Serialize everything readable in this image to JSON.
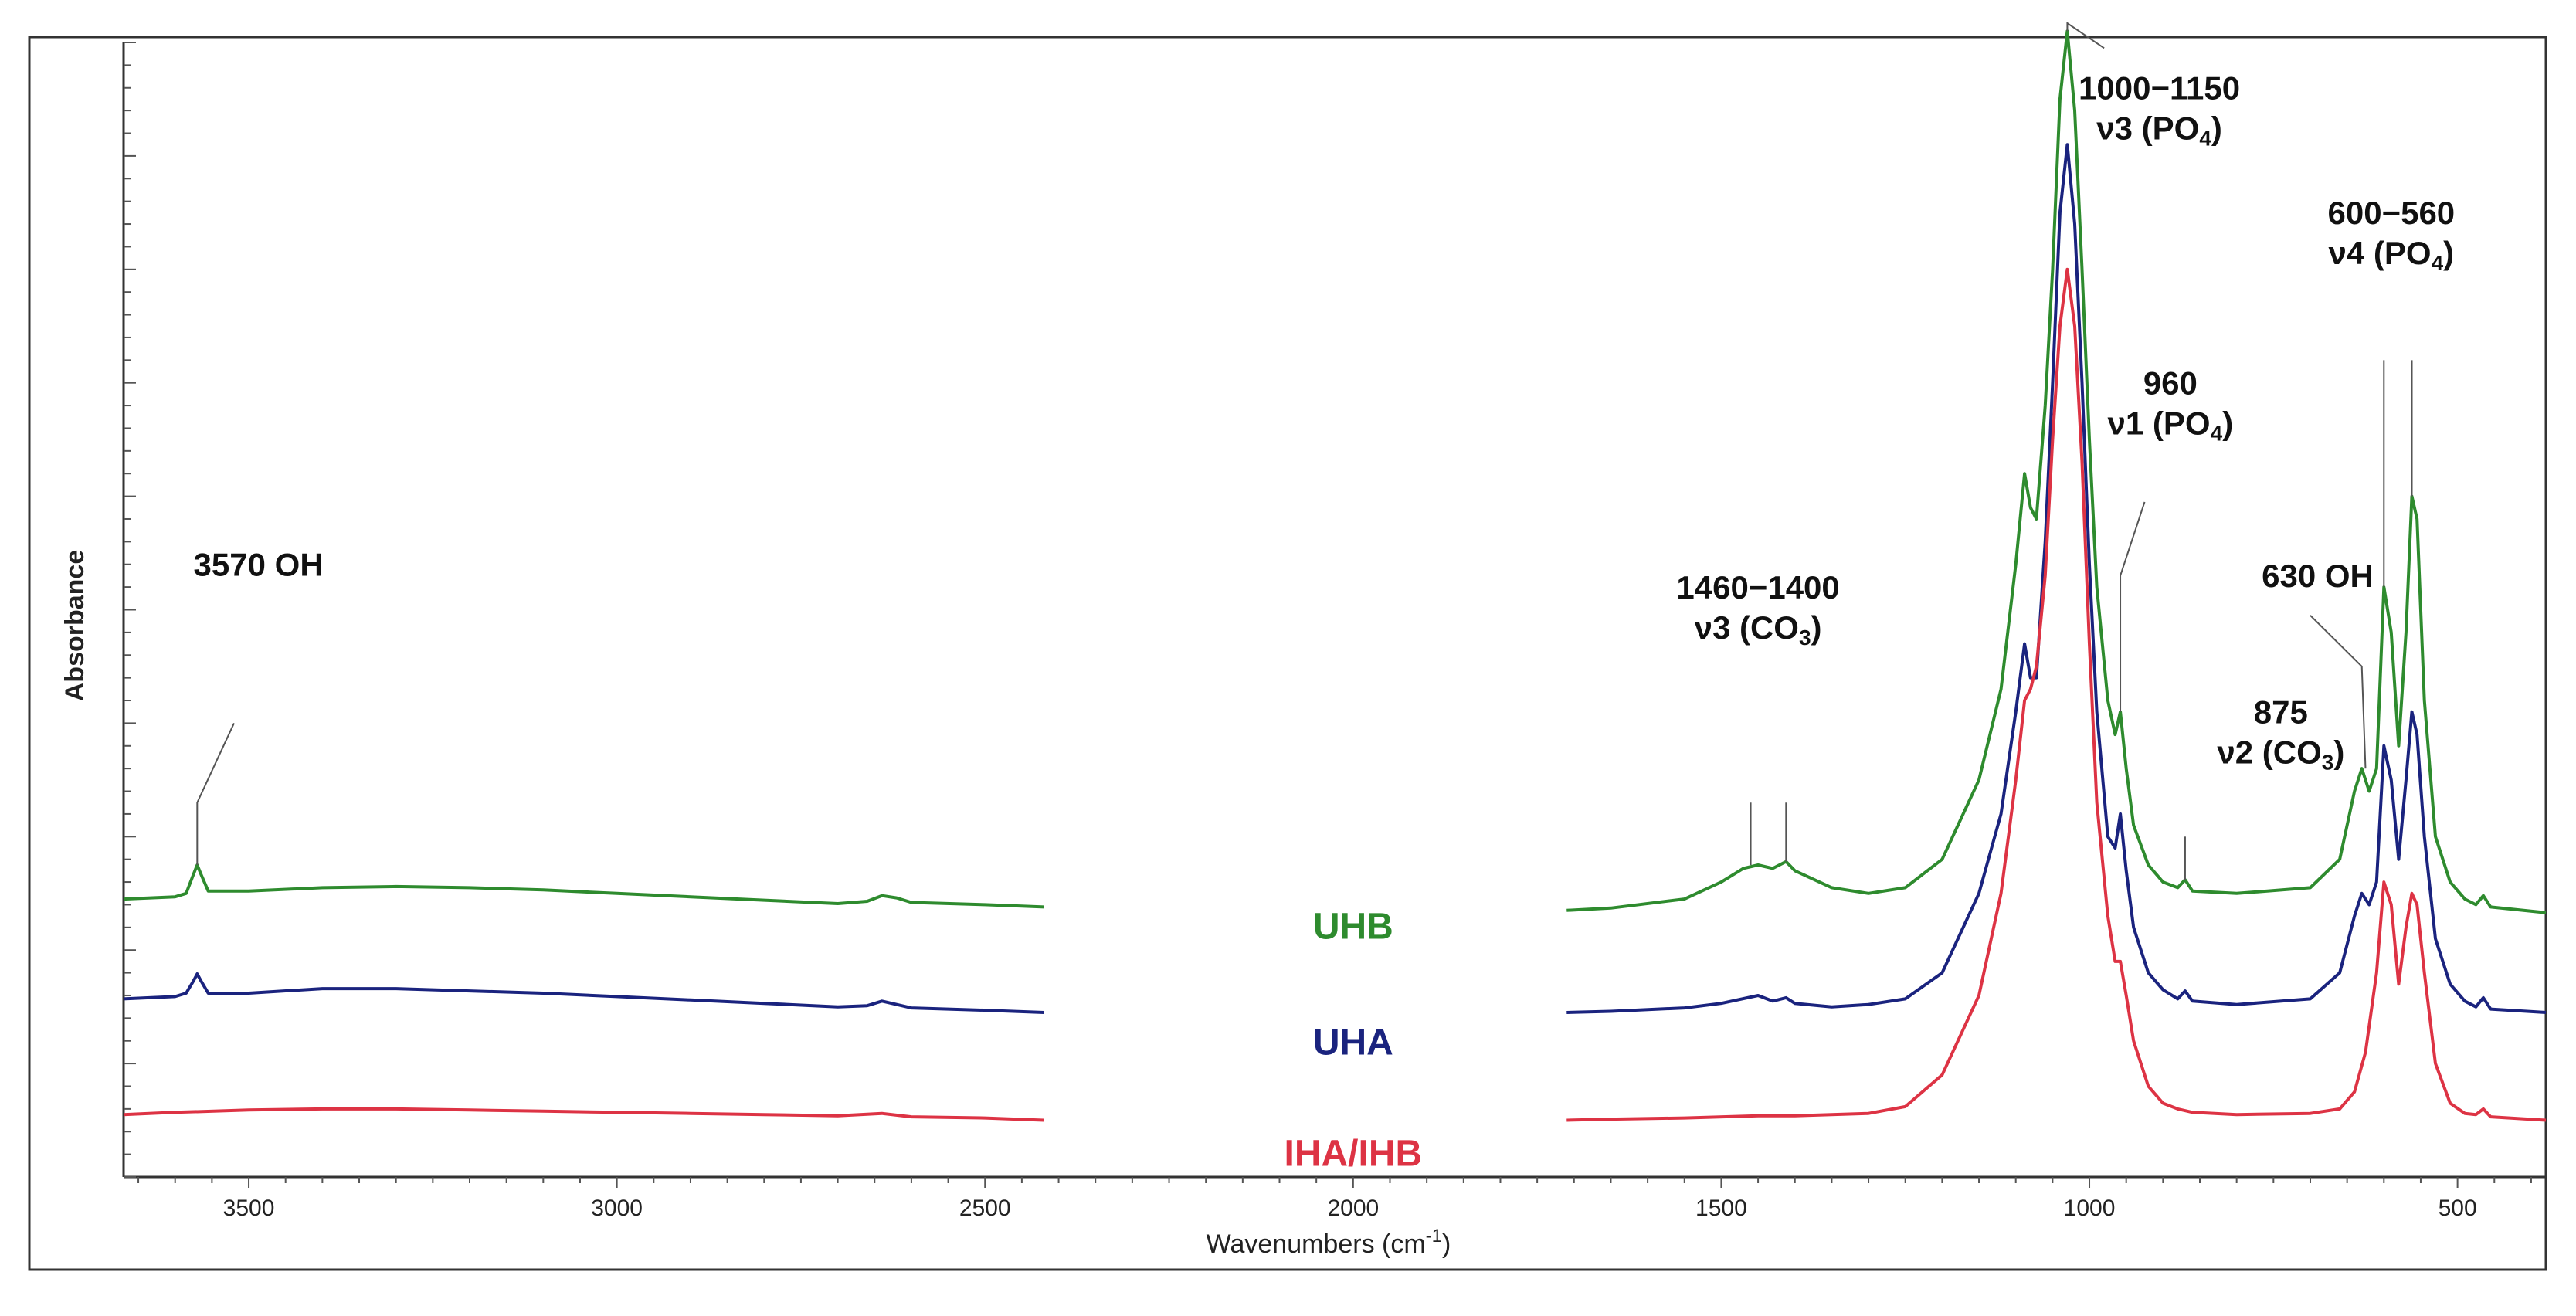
{
  "chart_data": {
    "type": "line",
    "title": "",
    "xlabel_main": "Wavenumbers (cm",
    "xlabel_sup": "-1",
    "xlabel_tail": ")",
    "ylabel": "Absorbance",
    "xlim": [
      3670,
      380
    ],
    "x_reversed": true,
    "ylim": [
      0,
      10
    ],
    "gap_range": [
      2420,
      1710
    ],
    "x_ticks": [
      3500,
      3000,
      2500,
      2000,
      1500,
      1000,
      500
    ],
    "x_tick_labels": [
      "3500",
      "3000",
      "2500",
      "2000",
      "1500",
      "1000",
      "500"
    ],
    "grid": false,
    "series": [
      {
        "name": "UHB",
        "color": "#2e8b2e",
        "points": [
          [
            3670,
            2.45
          ],
          [
            3600,
            2.47
          ],
          [
            3585,
            2.5
          ],
          [
            3575,
            2.67
          ],
          [
            3570,
            2.75
          ],
          [
            3565,
            2.67
          ],
          [
            3555,
            2.52
          ],
          [
            3500,
            2.52
          ],
          [
            3400,
            2.55
          ],
          [
            3300,
            2.56
          ],
          [
            3200,
            2.55
          ],
          [
            3100,
            2.53
          ],
          [
            3000,
            2.5
          ],
          [
            2900,
            2.47
          ],
          [
            2800,
            2.44
          ],
          [
            2700,
            2.41
          ],
          [
            2660,
            2.43
          ],
          [
            2640,
            2.48
          ],
          [
            2620,
            2.46
          ],
          [
            2600,
            2.42
          ],
          [
            2500,
            2.4
          ],
          [
            2420,
            2.38
          ],
          [
            1710,
            2.35
          ],
          [
            1650,
            2.37
          ],
          [
            1550,
            2.45
          ],
          [
            1500,
            2.6
          ],
          [
            1470,
            2.72
          ],
          [
            1450,
            2.75
          ],
          [
            1430,
            2.72
          ],
          [
            1412,
            2.78
          ],
          [
            1400,
            2.7
          ],
          [
            1350,
            2.55
          ],
          [
            1300,
            2.5
          ],
          [
            1250,
            2.55
          ],
          [
            1200,
            2.8
          ],
          [
            1150,
            3.5
          ],
          [
            1120,
            4.3
          ],
          [
            1100,
            5.4
          ],
          [
            1088,
            6.2
          ],
          [
            1080,
            5.9
          ],
          [
            1072,
            5.8
          ],
          [
            1060,
            6.8
          ],
          [
            1050,
            8.0
          ],
          [
            1040,
            9.5
          ],
          [
            1030,
            10.1
          ],
          [
            1020,
            9.4
          ],
          [
            1010,
            8.0
          ],
          [
            1000,
            6.5
          ],
          [
            990,
            5.2
          ],
          [
            975,
            4.2
          ],
          [
            965,
            3.9
          ],
          [
            958,
            4.1
          ],
          [
            950,
            3.6
          ],
          [
            940,
            3.1
          ],
          [
            920,
            2.75
          ],
          [
            900,
            2.6
          ],
          [
            880,
            2.55
          ],
          [
            870,
            2.62
          ],
          [
            860,
            2.52
          ],
          [
            800,
            2.5
          ],
          [
            700,
            2.55
          ],
          [
            660,
            2.8
          ],
          [
            640,
            3.4
          ],
          [
            630,
            3.6
          ],
          [
            620,
            3.4
          ],
          [
            610,
            3.6
          ],
          [
            600,
            5.2
          ],
          [
            590,
            4.8
          ],
          [
            580,
            3.8
          ],
          [
            570,
            4.8
          ],
          [
            562,
            6.0
          ],
          [
            555,
            5.8
          ],
          [
            545,
            4.2
          ],
          [
            530,
            3.0
          ],
          [
            510,
            2.6
          ],
          [
            490,
            2.45
          ],
          [
            475,
            2.4
          ],
          [
            465,
            2.48
          ],
          [
            455,
            2.38
          ],
          [
            380,
            2.33
          ]
        ]
      },
      {
        "name": "UHA",
        "color": "#1a237e",
        "points": [
          [
            3670,
            1.57
          ],
          [
            3600,
            1.59
          ],
          [
            3585,
            1.62
          ],
          [
            3575,
            1.73
          ],
          [
            3570,
            1.79
          ],
          [
            3565,
            1.73
          ],
          [
            3555,
            1.62
          ],
          [
            3500,
            1.62
          ],
          [
            3400,
            1.66
          ],
          [
            3300,
            1.66
          ],
          [
            3200,
            1.64
          ],
          [
            3100,
            1.62
          ],
          [
            3000,
            1.59
          ],
          [
            2900,
            1.56
          ],
          [
            2800,
            1.53
          ],
          [
            2700,
            1.5
          ],
          [
            2660,
            1.51
          ],
          [
            2640,
            1.55
          ],
          [
            2620,
            1.52
          ],
          [
            2600,
            1.49
          ],
          [
            2500,
            1.47
          ],
          [
            2420,
            1.45
          ],
          [
            1710,
            1.45
          ],
          [
            1650,
            1.46
          ],
          [
            1550,
            1.49
          ],
          [
            1500,
            1.53
          ],
          [
            1450,
            1.6
          ],
          [
            1430,
            1.55
          ],
          [
            1412,
            1.58
          ],
          [
            1400,
            1.53
          ],
          [
            1350,
            1.5
          ],
          [
            1300,
            1.52
          ],
          [
            1250,
            1.57
          ],
          [
            1200,
            1.8
          ],
          [
            1150,
            2.5
          ],
          [
            1120,
            3.2
          ],
          [
            1100,
            4.1
          ],
          [
            1088,
            4.7
          ],
          [
            1080,
            4.4
          ],
          [
            1072,
            4.4
          ],
          [
            1060,
            5.6
          ],
          [
            1050,
            7.0
          ],
          [
            1040,
            8.5
          ],
          [
            1030,
            9.1
          ],
          [
            1020,
            8.4
          ],
          [
            1010,
            7.0
          ],
          [
            1000,
            5.4
          ],
          [
            990,
            4.1
          ],
          [
            975,
            3.0
          ],
          [
            965,
            2.9
          ],
          [
            958,
            3.2
          ],
          [
            950,
            2.7
          ],
          [
            940,
            2.2
          ],
          [
            920,
            1.8
          ],
          [
            900,
            1.65
          ],
          [
            880,
            1.57
          ],
          [
            870,
            1.64
          ],
          [
            860,
            1.55
          ],
          [
            800,
            1.52
          ],
          [
            700,
            1.57
          ],
          [
            660,
            1.8
          ],
          [
            640,
            2.3
          ],
          [
            630,
            2.5
          ],
          [
            620,
            2.4
          ],
          [
            610,
            2.6
          ],
          [
            600,
            3.8
          ],
          [
            590,
            3.5
          ],
          [
            580,
            2.8
          ],
          [
            570,
            3.5
          ],
          [
            562,
            4.1
          ],
          [
            555,
            3.9
          ],
          [
            545,
            3.0
          ],
          [
            530,
            2.1
          ],
          [
            510,
            1.7
          ],
          [
            490,
            1.55
          ],
          [
            475,
            1.5
          ],
          [
            465,
            1.58
          ],
          [
            455,
            1.48
          ],
          [
            380,
            1.45
          ]
        ]
      },
      {
        "name": "IHA/IHB",
        "color": "#dd3344",
        "points": [
          [
            3670,
            0.55
          ],
          [
            3600,
            0.57
          ],
          [
            3500,
            0.59
          ],
          [
            3400,
            0.6
          ],
          [
            3300,
            0.6
          ],
          [
            3200,
            0.59
          ],
          [
            3100,
            0.58
          ],
          [
            3000,
            0.57
          ],
          [
            2900,
            0.56
          ],
          [
            2800,
            0.55
          ],
          [
            2700,
            0.54
          ],
          [
            2640,
            0.56
          ],
          [
            2600,
            0.53
          ],
          [
            2500,
            0.52
          ],
          [
            2420,
            0.5
          ],
          [
            1710,
            0.5
          ],
          [
            1650,
            0.51
          ],
          [
            1550,
            0.52
          ],
          [
            1450,
            0.54
          ],
          [
            1400,
            0.54
          ],
          [
            1300,
            0.56
          ],
          [
            1250,
            0.62
          ],
          [
            1200,
            0.9
          ],
          [
            1150,
            1.6
          ],
          [
            1120,
            2.5
          ],
          [
            1100,
            3.5
          ],
          [
            1088,
            4.2
          ],
          [
            1080,
            4.3
          ],
          [
            1072,
            4.5
          ],
          [
            1060,
            5.3
          ],
          [
            1050,
            6.5
          ],
          [
            1040,
            7.5
          ],
          [
            1030,
            8.0
          ],
          [
            1020,
            7.5
          ],
          [
            1010,
            6.3
          ],
          [
            1000,
            4.7
          ],
          [
            990,
            3.3
          ],
          [
            975,
            2.3
          ],
          [
            965,
            1.9
          ],
          [
            958,
            1.9
          ],
          [
            950,
            1.6
          ],
          [
            940,
            1.2
          ],
          [
            920,
            0.8
          ],
          [
            900,
            0.65
          ],
          [
            880,
            0.6
          ],
          [
            860,
            0.57
          ],
          [
            800,
            0.55
          ],
          [
            700,
            0.56
          ],
          [
            660,
            0.6
          ],
          [
            640,
            0.75
          ],
          [
            625,
            1.1
          ],
          [
            610,
            1.8
          ],
          [
            600,
            2.6
          ],
          [
            590,
            2.4
          ],
          [
            580,
            1.7
          ],
          [
            570,
            2.2
          ],
          [
            562,
            2.5
          ],
          [
            555,
            2.4
          ],
          [
            545,
            1.8
          ],
          [
            530,
            1.0
          ],
          [
            510,
            0.65
          ],
          [
            490,
            0.56
          ],
          [
            475,
            0.55
          ],
          [
            465,
            0.6
          ],
          [
            455,
            0.53
          ],
          [
            380,
            0.5
          ]
        ]
      }
    ],
    "series_labels": [
      {
        "text": "UHB",
        "x": 2000,
        "y": 2.1
      },
      {
        "text": "UHA",
        "x": 2000,
        "y": 1.08
      },
      {
        "text": "IHA/IHB",
        "x": 2000,
        "y": 0.1
      }
    ],
    "annotations": [
      {
        "id": "oh-3570",
        "lines": [
          [
            "3570 OH",
            null
          ]
        ],
        "align": "start",
        "tx": 3575,
        "ty": 5.3,
        "ref_x": 3570,
        "leaders": [
          [
            3570,
            2.75,
            3570,
            3.3,
            3520,
            4.0
          ]
        ]
      },
      {
        "id": "co3-v3",
        "lines": [
          [
            "1460−1400",
            null
          ],
          [
            "ν3 (CO",
            "3",
            ")"
          ]
        ],
        "align": "middle",
        "tx": 1450,
        "ty": 5.1,
        "leaders": [
          [
            1460,
            2.75,
            1460,
            3.3
          ],
          [
            1412,
            2.78,
            1412,
            3.3
          ]
        ]
      },
      {
        "id": "po4-v3",
        "lines": [
          [
            "1000−1150",
            null
          ],
          [
            "ν3 (PO",
            "4",
            ")"
          ]
        ],
        "align": "middle",
        "tx": 905,
        "ty": 9.5,
        "leaders": [
          [
            1030,
            10.1,
            1030,
            10.17,
            980,
            9.95
          ]
        ]
      },
      {
        "id": "po4-v1",
        "lines": [
          [
            "960",
            null
          ],
          [
            "ν1 (PO",
            "4",
            ")"
          ]
        ],
        "align": "middle",
        "tx": 890,
        "ty": 6.9,
        "leaders": [
          [
            958,
            4.1,
            958,
            5.3,
            925,
            5.95
          ]
        ]
      },
      {
        "id": "co3-v2",
        "lines": [
          [
            "875",
            null
          ],
          [
            "ν2 (CO",
            "3",
            ")"
          ]
        ],
        "align": "middle",
        "tx": 740,
        "ty": 4.0,
        "leaders": [
          [
            870,
            2.62,
            870,
            3.0
          ]
        ]
      },
      {
        "id": "oh-630",
        "lines": [
          [
            "630 OH",
            null
          ]
        ],
        "align": "middle",
        "tx": 690,
        "ty": 5.2,
        "leaders": [
          [
            625,
            3.6,
            630,
            4.5,
            700,
            4.95
          ]
        ]
      },
      {
        "id": "po4-v4",
        "lines": [
          [
            "600−560",
            null
          ],
          [
            "ν4 (PO",
            "4",
            ")"
          ]
        ],
        "align": "middle",
        "tx": 590,
        "ty": 8.4,
        "leaders": [
          [
            600,
            5.2,
            600,
            7.2
          ],
          [
            562,
            6.0,
            562,
            7.2
          ]
        ]
      }
    ]
  }
}
